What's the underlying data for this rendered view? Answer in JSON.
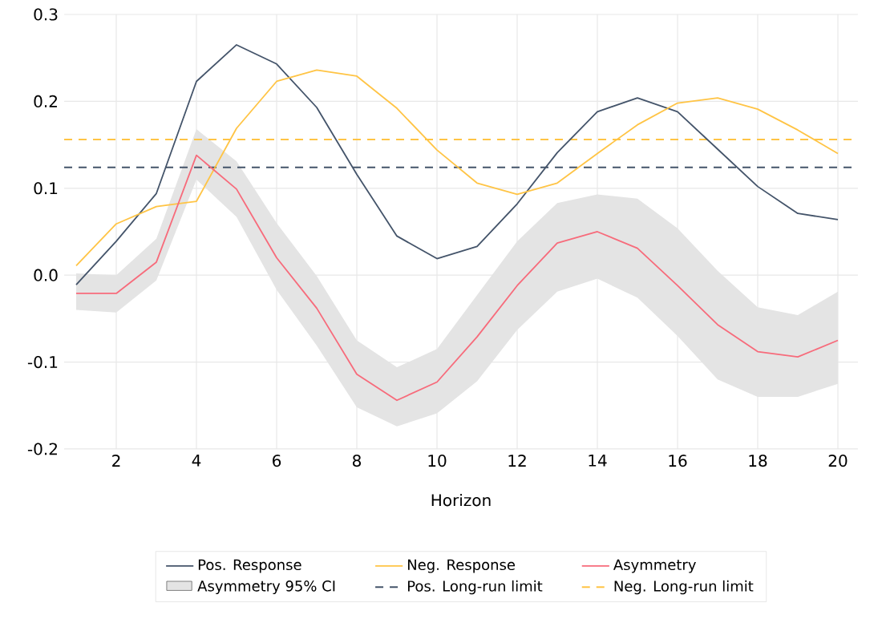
{
  "chart_data": {
    "type": "line",
    "xlabel": "Horizon",
    "x": [
      1,
      2,
      3,
      4,
      5,
      6,
      7,
      8,
      9,
      10,
      11,
      12,
      13,
      14,
      15,
      16,
      17,
      18,
      19,
      20
    ],
    "xlim": [
      0.7,
      20.5
    ],
    "xticks": [
      2,
      4,
      6,
      8,
      10,
      12,
      14,
      16,
      18,
      20
    ],
    "ylim": [
      -0.2,
      0.3
    ],
    "yticks": [
      {
        "value": -0.2,
        "label": "-0.2"
      },
      -0.1,
      {
        "value": 0,
        "label": "0.0"
      },
      0.1,
      0.2,
      0.3
    ],
    "grid": true,
    "legend": "bottom",
    "marker": "none",
    "line_style": "solid",
    "series": [
      {
        "name": "Pos. Response",
        "color": "#44546a",
        "values": [
          -0.011,
          0.039,
          0.094,
          0.223,
          0.265,
          0.243,
          0.193,
          0.116,
          0.045,
          0.019,
          0.033,
          0.082,
          0.141,
          0.188,
          0.204,
          0.188,
          0.145,
          0.102,
          0.071,
          0.064
        ]
      },
      {
        "name": "Neg. Response",
        "color": "#ffc445",
        "values": [
          0.011,
          0.059,
          0.079,
          0.085,
          0.169,
          0.223,
          0.236,
          0.229,
          0.192,
          0.144,
          0.106,
          0.093,
          0.106,
          0.14,
          0.173,
          0.198,
          0.204,
          0.191,
          0.167,
          0.14
        ]
      },
      {
        "name": "Asymmetry",
        "color": "#f76b7b",
        "values": [
          -0.021,
          -0.021,
          0.015,
          0.138,
          0.099,
          0.02,
          -0.038,
          -0.114,
          -0.144,
          -0.123,
          -0.071,
          -0.012,
          0.037,
          0.05,
          0.031,
          -0.012,
          -0.057,
          -0.088,
          -0.094,
          -0.075
        ],
        "lower": [
          -0.04,
          -0.043,
          -0.006,
          0.11,
          0.067,
          -0.017,
          -0.081,
          -0.152,
          -0.174,
          -0.159,
          -0.122,
          -0.063,
          -0.019,
          -0.004,
          -0.026,
          -0.07,
          -0.12,
          -0.14,
          -0.14,
          -0.125
        ],
        "upper": [
          0.002,
          0,
          0.042,
          0.168,
          0.131,
          0.06,
          -0.001,
          -0.075,
          -0.106,
          -0.085,
          -0.023,
          0.039,
          0.083,
          0.093,
          0.088,
          0.054,
          0.005,
          -0.037,
          -0.046,
          -0.019
        ]
      }
    ],
    "annotations": [
      "Asymmetry 95% CI"
    ],
    "ref_lines": [
      {
        "axis": "y",
        "value": 0.124,
        "label": "Pos. Long-run limit",
        "color": "#44546a",
        "line_style": "dashed"
      },
      {
        "axis": "y",
        "value": 0.156,
        "label": "Neg. Long-run limit",
        "color": "#ffc445",
        "line_style": "dashed"
      }
    ]
  }
}
